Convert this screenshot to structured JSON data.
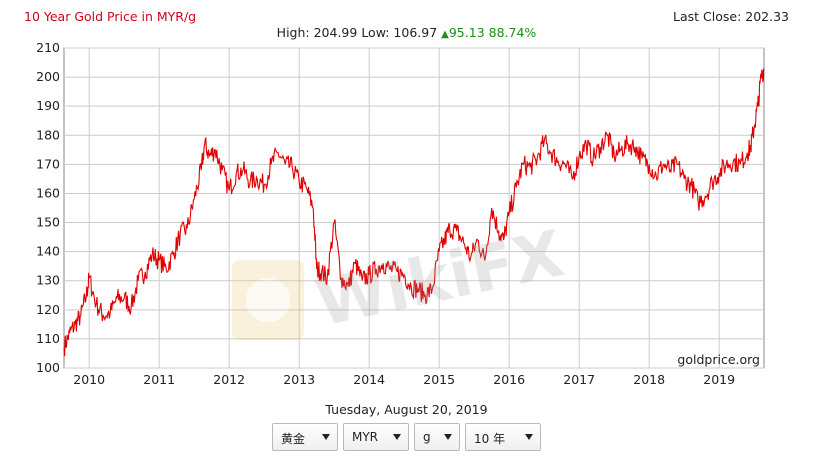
{
  "header": {
    "title": "10 Year Gold Price in MYR/g",
    "last_close": "Last Close: 202.33",
    "high": "High: 204.99",
    "low": "Low: 106.97",
    "change": "95.13",
    "change_pct": "88.74%"
  },
  "chart_data": {
    "type": "line",
    "title": "10 Year Gold Price in MYR/g",
    "xlabel": "",
    "ylabel": "",
    "ylim": [
      100,
      210
    ],
    "xlim": [
      2009.64,
      2019.64
    ],
    "yticks": [
      100,
      110,
      120,
      130,
      140,
      150,
      160,
      170,
      180,
      190,
      200,
      210
    ],
    "x_tick_labels": [
      "2010",
      "2011",
      "2012",
      "2013",
      "2014",
      "2015",
      "2016",
      "2017",
      "2018",
      "2019"
    ],
    "x_tick_positions": [
      2010,
      2011,
      2012,
      2013,
      2014,
      2015,
      2016,
      2017,
      2018,
      2019
    ],
    "grid": true,
    "series": [
      {
        "color": "#e00000",
        "x": [
          2009.64,
          2009.72,
          2009.8,
          2009.88,
          2009.96,
          2010.0,
          2010.1,
          2010.2,
          2010.3,
          2010.4,
          2010.5,
          2010.6,
          2010.7,
          2010.8,
          2010.9,
          2011.0,
          2011.1,
          2011.2,
          2011.3,
          2011.4,
          2011.5,
          2011.6,
          2011.65,
          2011.72,
          2011.8,
          2011.9,
          2012.0,
          2012.1,
          2012.2,
          2012.3,
          2012.4,
          2012.5,
          2012.6,
          2012.7,
          2012.8,
          2012.9,
          2013.0,
          2013.1,
          2013.2,
          2013.25,
          2013.32,
          2013.4,
          2013.5,
          2013.6,
          2013.7,
          2013.8,
          2013.9,
          2014.0,
          2014.1,
          2014.2,
          2014.3,
          2014.4,
          2014.5,
          2014.6,
          2014.7,
          2014.8,
          2014.9,
          2015.0,
          2015.08,
          2015.15,
          2015.25,
          2015.35,
          2015.45,
          2015.55,
          2015.65,
          2015.75,
          2015.85,
          2015.92,
          2016.0,
          2016.1,
          2016.2,
          2016.3,
          2016.4,
          2016.5,
          2016.6,
          2016.7,
          2016.8,
          2016.9,
          2017.0,
          2017.1,
          2017.2,
          2017.3,
          2017.4,
          2017.5,
          2017.6,
          2017.7,
          2017.8,
          2017.9,
          2018.0,
          2018.1,
          2018.2,
          2018.3,
          2018.4,
          2018.5,
          2018.6,
          2018.7,
          2018.8,
          2018.9,
          2019.0,
          2019.1,
          2019.2,
          2019.3,
          2019.4,
          2019.45,
          2019.5,
          2019.55,
          2019.6,
          2019.64
        ],
        "y": [
          107,
          112,
          115,
          118,
          125,
          131,
          122,
          118,
          119,
          124,
          124,
          121,
          130,
          133,
          139,
          137,
          134,
          139,
          146,
          148,
          158,
          168,
          177,
          173,
          175,
          168,
          161,
          167,
          168,
          164,
          165,
          163,
          170,
          174,
          170,
          169,
          164,
          162,
          155,
          134,
          133,
          131,
          150,
          131,
          128,
          136,
          130,
          132,
          134,
          136,
          134,
          133,
          132,
          128,
          127,
          125,
          127,
          140,
          144,
          148,
          147,
          143,
          138,
          144,
          137,
          155,
          147,
          144,
          153,
          162,
          170,
          169,
          172,
          178,
          174,
          171,
          170,
          165,
          173,
          177,
          172,
          176,
          180,
          173,
          175,
          177,
          176,
          172,
          170,
          166,
          170,
          168,
          170,
          165,
          163,
          157,
          159,
          164,
          167,
          170,
          171,
          170,
          174,
          176,
          183,
          190,
          200,
          203
        ]
      }
    ],
    "source_label": "goldprice.org"
  },
  "footer": {
    "date": "Tuesday, August 20, 2019",
    "selects": [
      {
        "value": "黄金"
      },
      {
        "value": "MYR"
      },
      {
        "value": "g"
      },
      {
        "value": "10 年"
      }
    ]
  },
  "watermark": {
    "text": "WikiFX"
  },
  "colors": {
    "line": "#e00000",
    "title": "#d0021b",
    "up": "#1a8f1a",
    "grid": "#cccccc",
    "plot_border": "#888888"
  }
}
